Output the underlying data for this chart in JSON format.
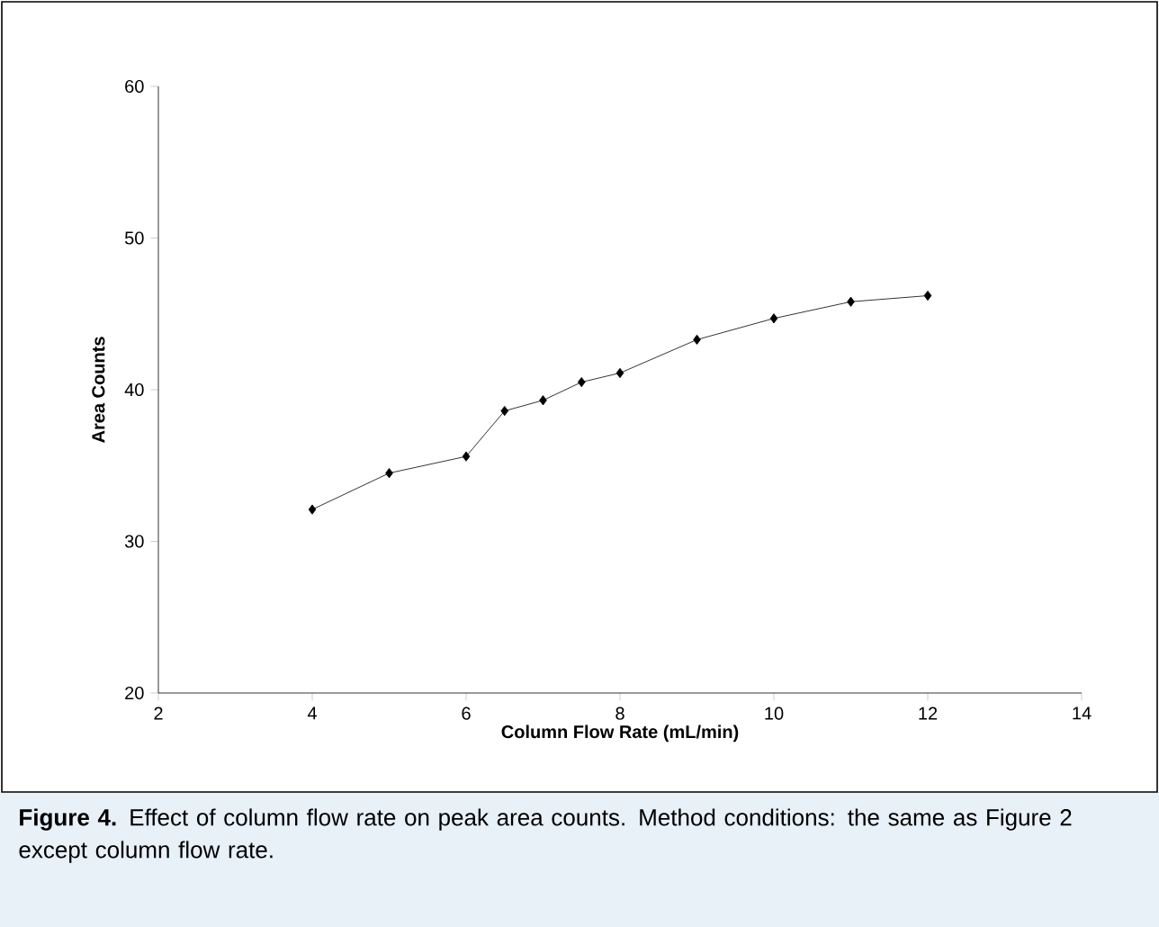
{
  "chart_data": {
    "type": "line",
    "xlabel": "Column Flow Rate (mL/min)",
    "ylabel": "Area Counts",
    "x": [
      4,
      5,
      6,
      6.5,
      7,
      7.5,
      8,
      9,
      10,
      11,
      12
    ],
    "series": [
      {
        "color": "#000000",
        "values": [
          32.1,
          34.5,
          35.6,
          38.6,
          39.3,
          40.5,
          41.1,
          43.3,
          44.7,
          45.8,
          46.2
        ]
      }
    ],
    "xlim": [
      2,
      14
    ],
    "ylim": [
      20,
      60
    ],
    "xticks": [
      2,
      4,
      6,
      8,
      10,
      12,
      14
    ],
    "yticks": [
      20,
      30,
      40,
      50,
      60
    ],
    "marker": "diamond",
    "line_style": "solid",
    "grid": false,
    "annotations": [
      "**Figure 4.** Effect of column flow rate on peak area counts. Method conditions: the same as Figure 2 except column flow rate."
    ]
  }
}
